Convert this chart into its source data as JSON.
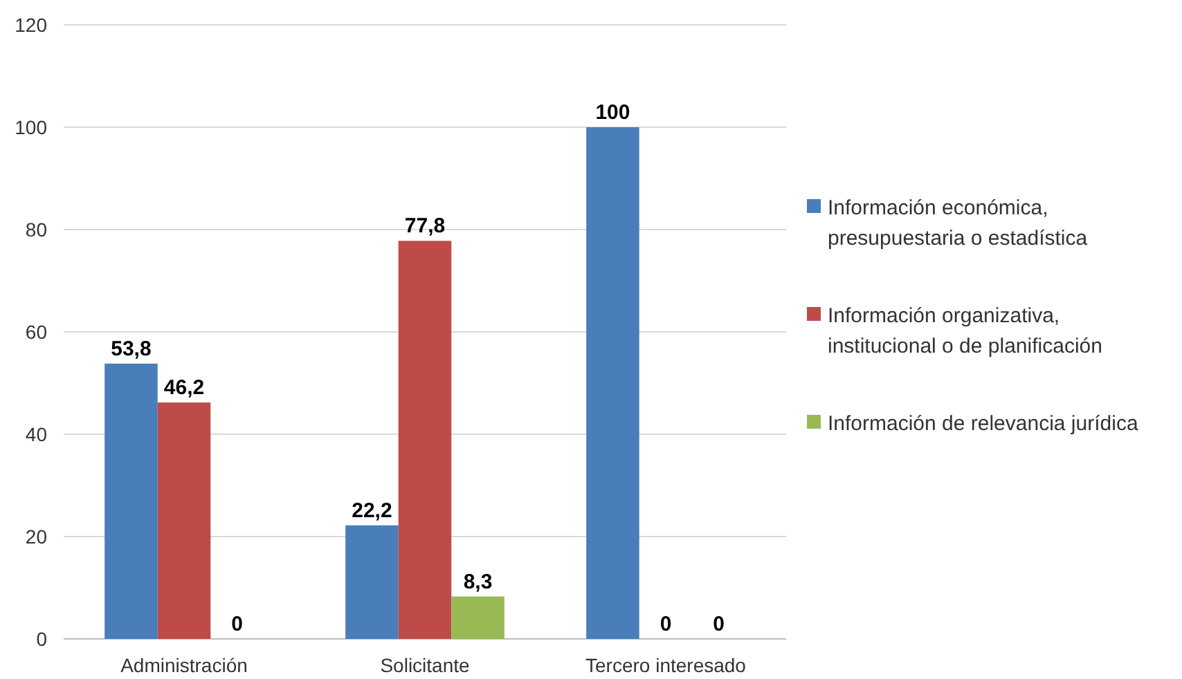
{
  "chart_data": {
    "type": "bar",
    "categories": [
      "Administración",
      "Solicitante",
      "Tercero interesado"
    ],
    "series": [
      {
        "name": "Información económica, presupuestaria o estadística",
        "color": "#4a7ebb",
        "values": [
          53.8,
          22.2,
          100
        ],
        "value_labels": [
          "53,8",
          "22,2",
          "100"
        ]
      },
      {
        "name": "Información organizativa, institucional o de planificación",
        "color": "#be4b48",
        "values": [
          46.2,
          77.8,
          0
        ],
        "value_labels": [
          "46,2",
          "77,8",
          "0"
        ]
      },
      {
        "name": "Información de relevancia jurídica",
        "color": "#98b954",
        "values": [
          0,
          8.3,
          0
        ],
        "value_labels": [
          "0",
          "8,3",
          "0"
        ]
      }
    ],
    "ylim": [
      0,
      120
    ],
    "yticks": [
      0,
      20,
      40,
      60,
      80,
      100,
      120
    ],
    "grid": "y",
    "legend": "right"
  }
}
